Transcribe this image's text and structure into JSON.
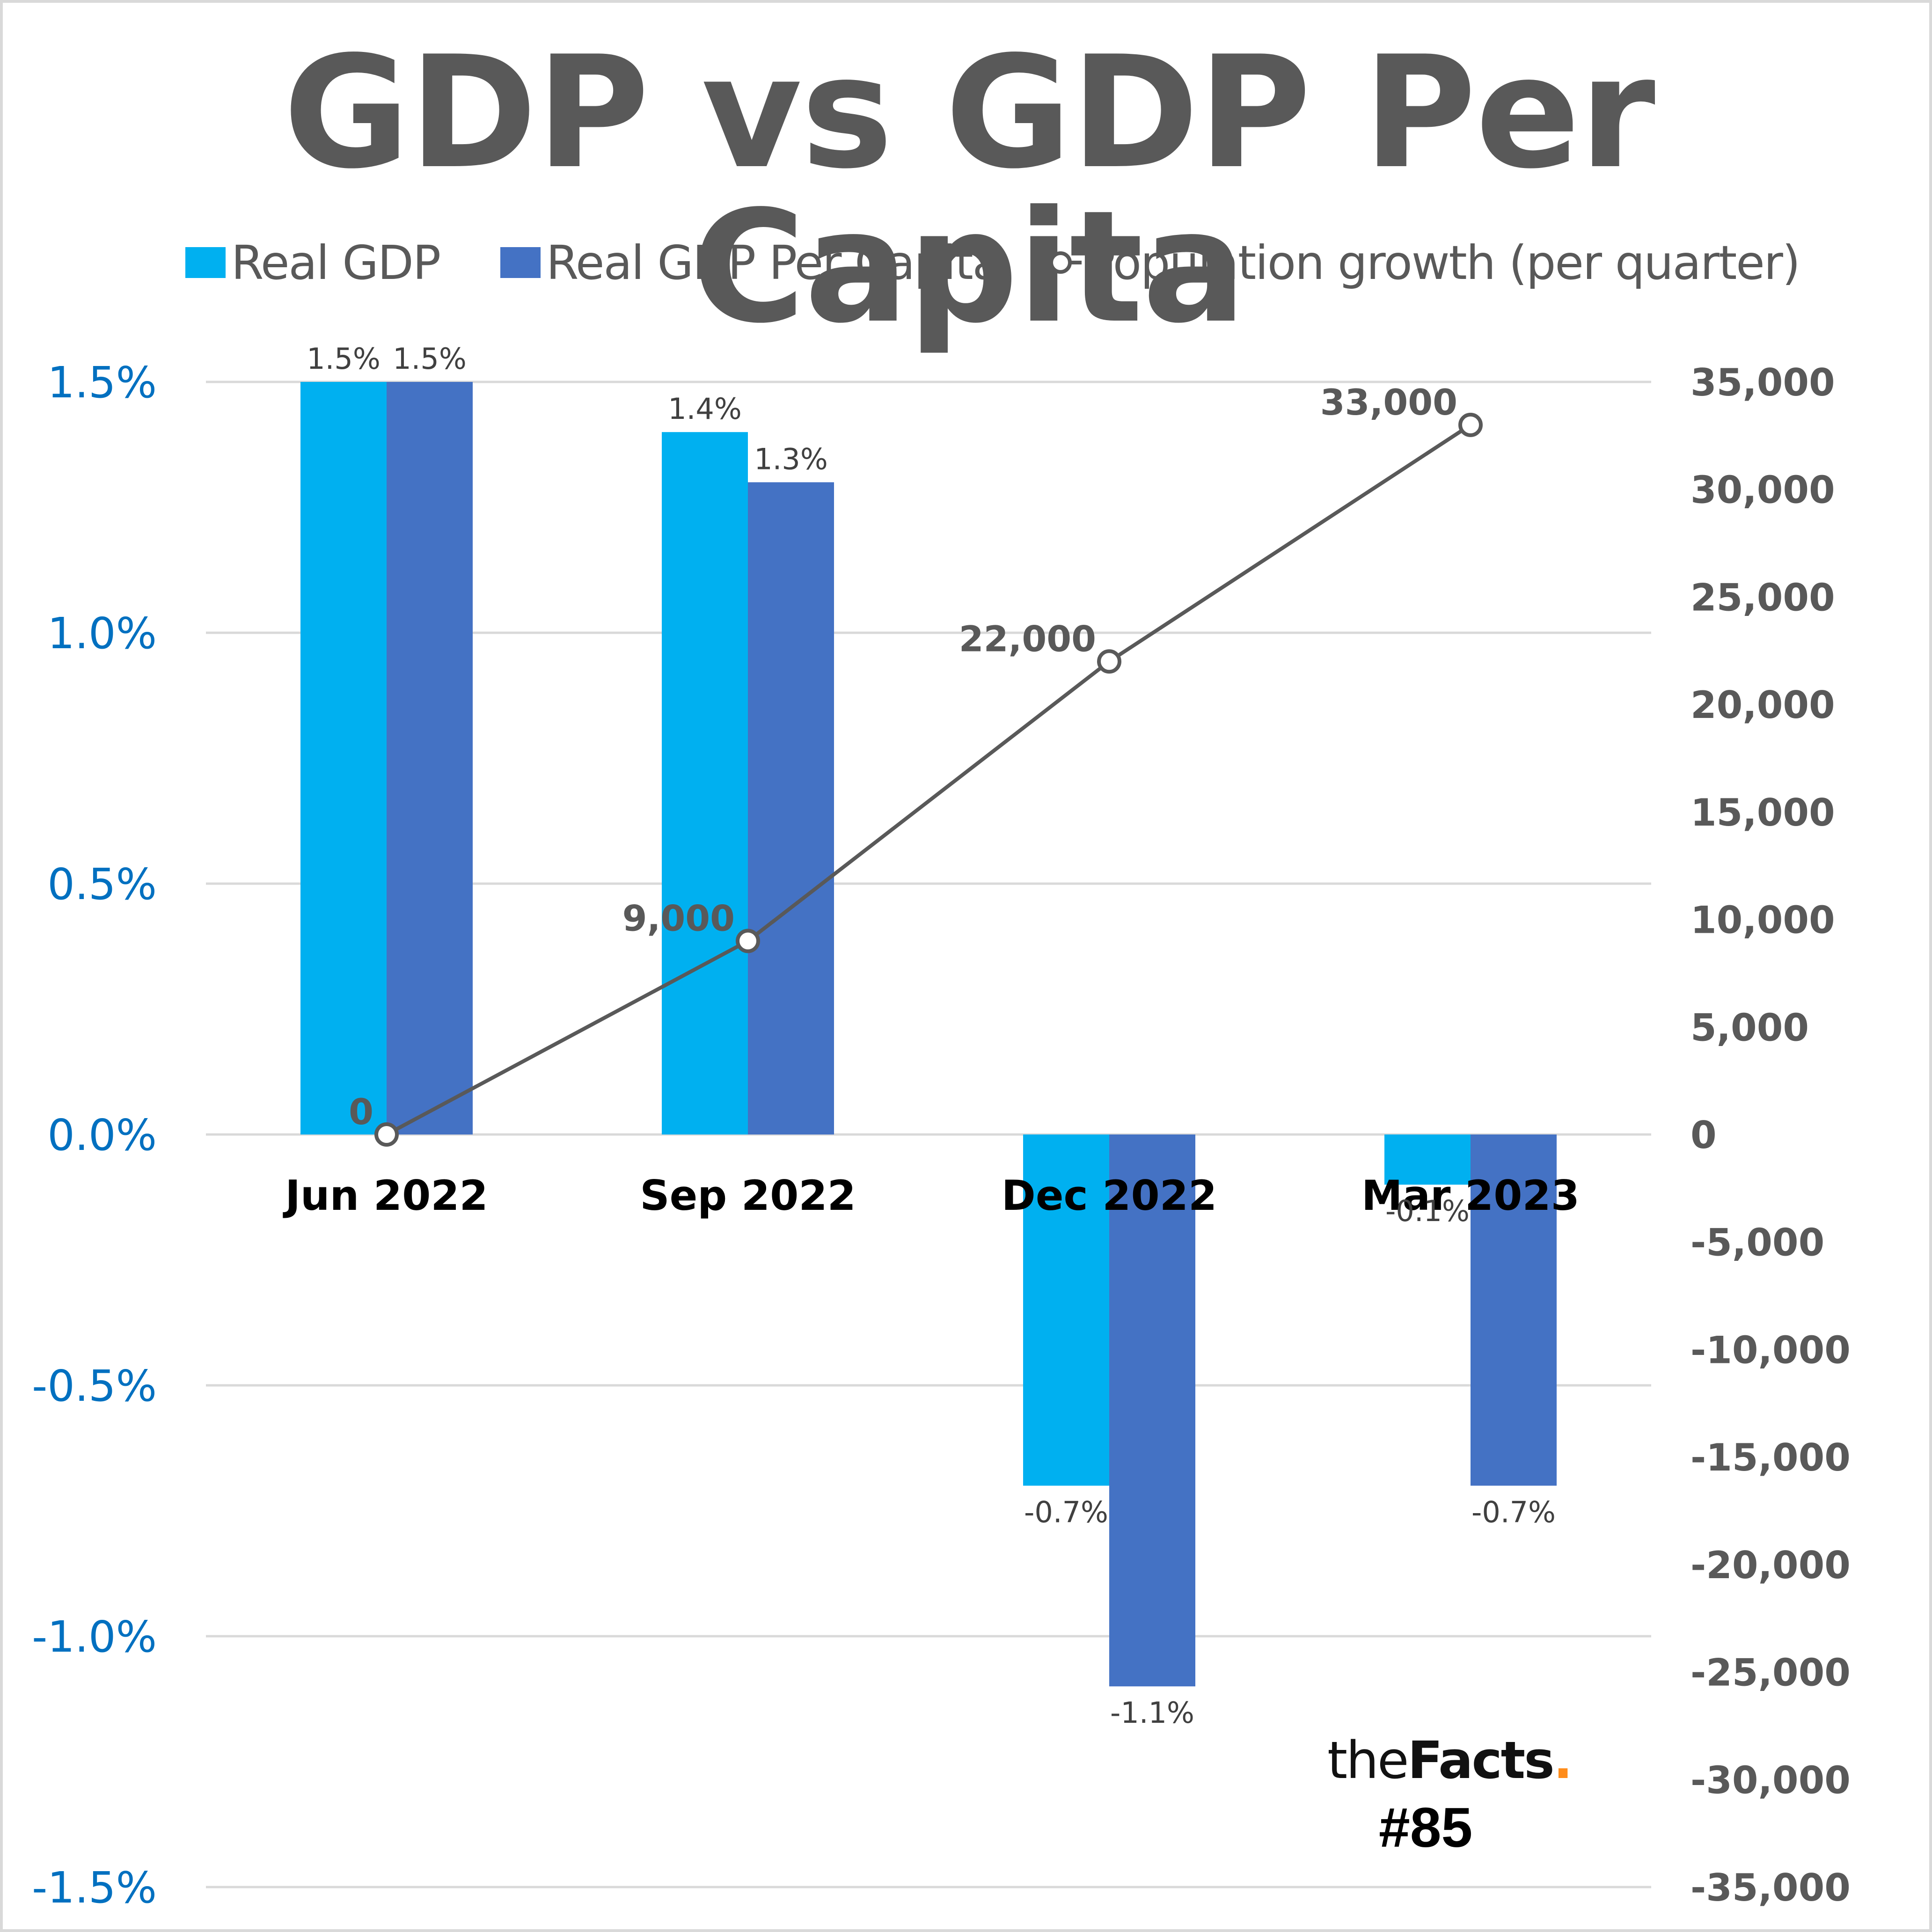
{
  "chart_data": {
    "type": "bar",
    "title": "GDP vs GDP Per Capita",
    "categories": [
      "Jun 2022",
      "Sep 2022",
      "Dec 2022",
      "Mar 2023"
    ],
    "series": [
      {
        "name": "Real GDP",
        "type": "bar",
        "axis": "left",
        "color": "#00B0F0",
        "values": [
          1.5,
          1.4,
          -0.7,
          -0.1
        ],
        "labels": [
          "1.5%",
          "1.4%",
          "-0.7%",
          "-0.1%"
        ]
      },
      {
        "name": "Real GDP Per Capita",
        "type": "bar",
        "axis": "left",
        "color": "#4472C4",
        "values": [
          1.5,
          1.3,
          -1.1,
          -0.7
        ],
        "labels": [
          "1.5%",
          "1.3%",
          "-1.1%",
          "-0.7%"
        ]
      },
      {
        "name": "Population growth (per quarter)",
        "type": "line",
        "axis": "right",
        "color": "#595959",
        "values": [
          0,
          9000,
          22000,
          33000
        ],
        "labels": [
          "0",
          "9,000",
          "22,000",
          "33,000"
        ]
      }
    ],
    "left_axis": {
      "ylim": [
        -1.5,
        1.5
      ],
      "ticks": [
        1.5,
        1.0,
        0.5,
        0.0,
        -0.5,
        -1.0,
        -1.5
      ],
      "tick_labels": [
        "1.5%",
        "1.0%",
        "0.5%",
        "0.0%",
        "-0.5%",
        "-1.0%",
        "-1.5%"
      ],
      "color": "#0070C0"
    },
    "right_axis": {
      "ylim": [
        -35000,
        35000
      ],
      "ticks": [
        35000,
        30000,
        25000,
        20000,
        15000,
        10000,
        5000,
        0,
        -5000,
        -10000,
        -15000,
        -20000,
        -25000,
        -30000,
        -35000
      ],
      "tick_labels": [
        "35,000",
        "30,000",
        "25,000",
        "20,000",
        "15,000",
        "10,000",
        "5,000",
        "0",
        "-5,000",
        "-10,000",
        "-15,000",
        "-20,000",
        "-25,000",
        "-30,000",
        "-35,000"
      ],
      "color": "#595959"
    },
    "xlabel": "",
    "ylabel": "",
    "grid": true,
    "legend_position": "top"
  },
  "branding": {
    "name_light": "the",
    "name_bold": "Facts",
    "dot": ".",
    "issue": "#85",
    "accent_color": "#FF8C1A"
  }
}
